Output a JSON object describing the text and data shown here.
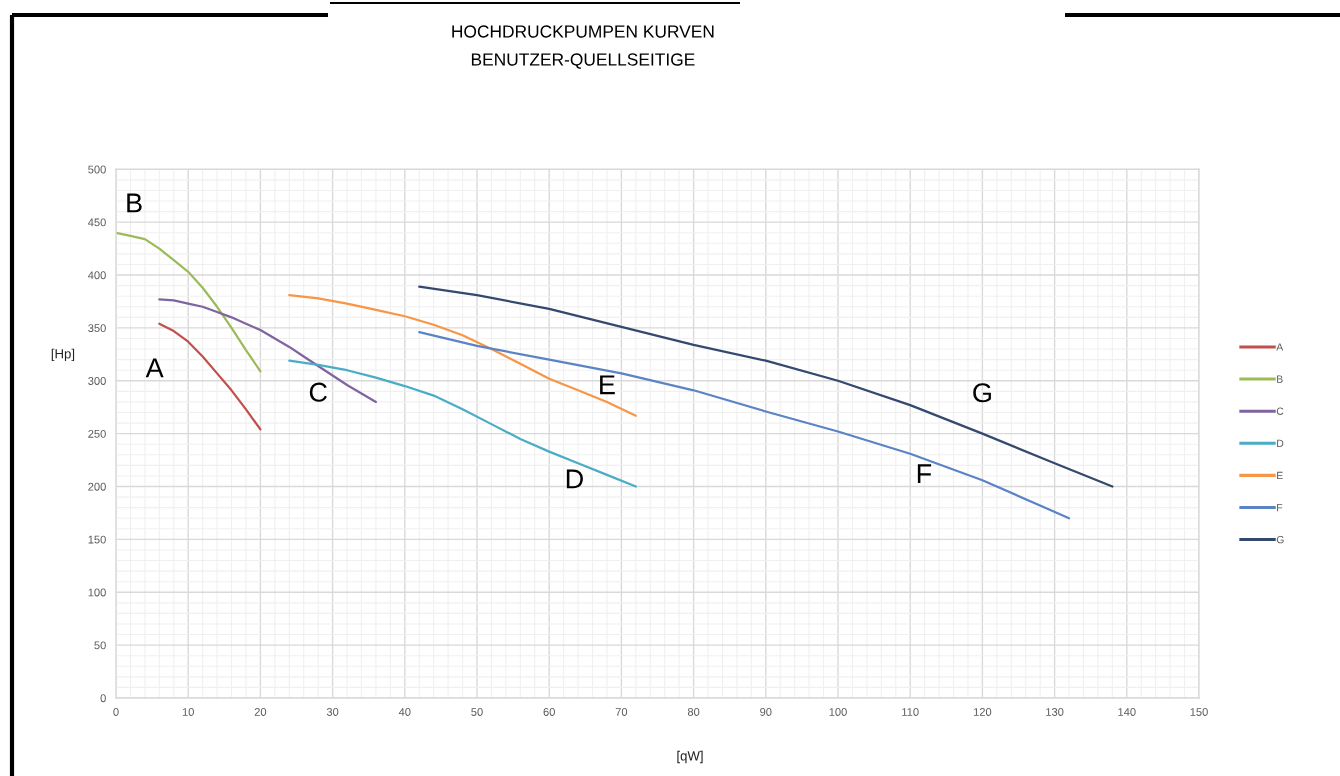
{
  "chart_data": {
    "type": "line",
    "title": "HOCHDRUCKPUMPEN KURVEN",
    "subtitle": "BENUTZER-QUELLSEITIGE",
    "xlabel": "[qW]",
    "ylabel": "[Hp]",
    "xlim": [
      0,
      150
    ],
    "xticks": [
      0,
      10,
      20,
      30,
      40,
      50,
      60,
      70,
      80,
      90,
      100,
      110,
      120,
      130,
      140,
      150
    ],
    "ylim": [
      0,
      500
    ],
    "yticks": [
      0,
      50,
      100,
      150,
      200,
      250,
      300,
      350,
      400,
      450,
      500
    ],
    "grid": true,
    "legend": "right",
    "line_style": "solid",
    "series": [
      {
        "name": "A",
        "color": "#c0504d",
        "x": [
          6,
          8,
          10,
          12,
          14,
          16,
          18,
          20
        ],
        "values": [
          354,
          347,
          337,
          323,
          307,
          291,
          273,
          254
        ]
      },
      {
        "name": "B",
        "color": "#9bbb59",
        "x": [
          0,
          2,
          4,
          6,
          8,
          10,
          12,
          14,
          16,
          18,
          20
        ],
        "values": [
          440,
          437,
          434,
          425,
          414,
          403,
          388,
          370,
          350,
          329,
          309
        ]
      },
      {
        "name": "C",
        "color": "#8064a2",
        "x": [
          6,
          8,
          10,
          12,
          14,
          16,
          18,
          20,
          22,
          24,
          26,
          28,
          30,
          32,
          34,
          36
        ],
        "values": [
          377,
          376,
          373,
          370,
          365,
          360,
          354,
          348,
          340,
          332,
          323,
          314,
          305,
          296,
          288,
          280
        ]
      },
      {
        "name": "D",
        "color": "#4bacc6",
        "x": [
          24,
          28,
          32,
          36,
          40,
          44,
          48,
          52,
          56,
          60,
          64,
          68,
          72
        ],
        "values": [
          319,
          315,
          310,
          303,
          295,
          286,
          273,
          259,
          245,
          233,
          222,
          211,
          200
        ]
      },
      {
        "name": "E",
        "color": "#f79646",
        "x": [
          24,
          28,
          32,
          36,
          40,
          44,
          48,
          52,
          56,
          60,
          64,
          68,
          72
        ],
        "values": [
          381,
          378,
          373,
          367,
          361,
          353,
          343,
          330,
          316,
          302,
          291,
          280,
          267
        ]
      },
      {
        "name": "F",
        "color": "#5b84c4",
        "x": [
          42,
          50,
          60,
          70,
          80,
          90,
          100,
          110,
          120,
          132
        ],
        "values": [
          346,
          333,
          320,
          307,
          291,
          271,
          252,
          231,
          206,
          170
        ]
      },
      {
        "name": "G",
        "color": "#34496e",
        "x": [
          42,
          50,
          60,
          70,
          80,
          90,
          100,
          110,
          120,
          130,
          138
        ],
        "values": [
          389,
          381,
          368,
          351,
          334,
          319,
          300,
          277,
          250,
          222,
          200
        ]
      }
    ]
  }
}
